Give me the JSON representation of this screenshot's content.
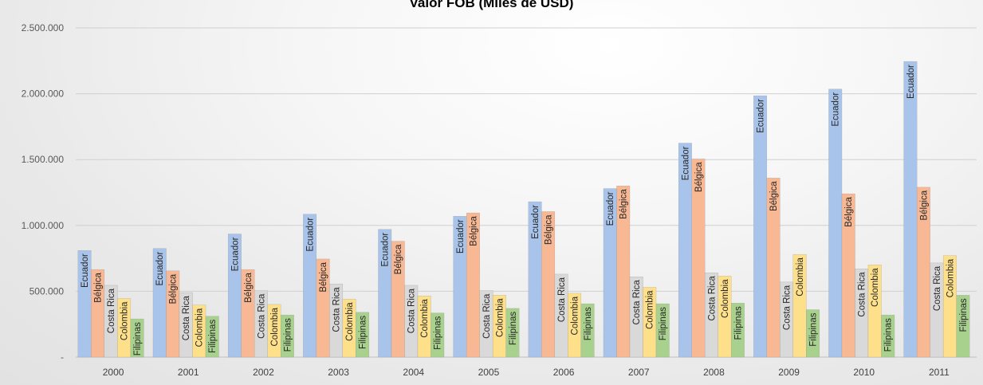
{
  "chart_data": {
    "type": "bar",
    "title": "Valor FOB (Miles de USD)",
    "categories": [
      "2000",
      "2001",
      "2002",
      "2003",
      "2004",
      "2005",
      "2006",
      "2007",
      "2008",
      "2009",
      "2010",
      "2011"
    ],
    "ylim": [
      0,
      2500000
    ],
    "yticks": [
      0,
      500000,
      1000000,
      1500000,
      2000000,
      2500000
    ],
    "ytick_labels": [
      "-",
      "500.000",
      "1.000.000",
      "1.500.000",
      "2.000.000",
      "2.500.000"
    ],
    "grid": true,
    "data_labels": "series-name",
    "series": [
      {
        "name": "Ecuador",
        "color": "#a9c4eb",
        "values": [
          810000,
          825000,
          935000,
          1085000,
          970000,
          1070000,
          1180000,
          1280000,
          1625000,
          1985000,
          2035000,
          2245000
        ]
      },
      {
        "name": "Bélgica",
        "color": "#f8b894",
        "values": [
          665000,
          655000,
          665000,
          745000,
          880000,
          1095000,
          1105000,
          1300000,
          1505000,
          1360000,
          1240000,
          1290000
        ]
      },
      {
        "name": "Costa Rica",
        "color": "#d9d9d9",
        "values": [
          545000,
          490000,
          505000,
          555000,
          545000,
          505000,
          630000,
          610000,
          640000,
          570000,
          670000,
          715000
        ]
      },
      {
        "name": "Colombia",
        "color": "#ffe08a",
        "values": [
          445000,
          395000,
          400000,
          440000,
          465000,
          470000,
          485000,
          530000,
          615000,
          780000,
          700000,
          770000
        ]
      },
      {
        "name": "Filipinas",
        "color": "#a9d18e",
        "values": [
          290000,
          310000,
          320000,
          340000,
          335000,
          370000,
          405000,
          405000,
          410000,
          360000,
          320000,
          470000
        ]
      }
    ]
  }
}
